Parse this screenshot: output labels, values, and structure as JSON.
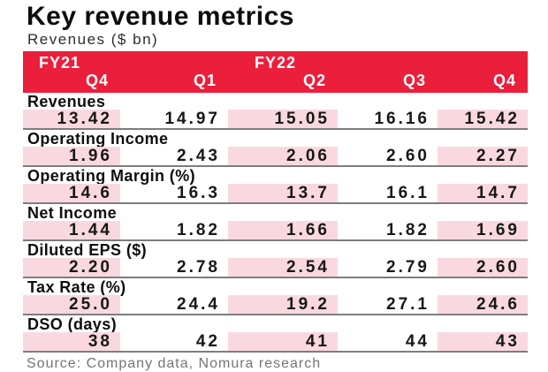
{
  "title": "Key revenue metrics",
  "subtitle": "Revenues ($ bn)",
  "source": "Source: Company data, Nomura research",
  "colors": {
    "band_red": "#EB1F3B",
    "cell_pink": "#F9D9DF",
    "divider_gray": "#7d7d7d",
    "source_gray": "#757575"
  },
  "chart_data": {
    "type": "table",
    "title": "Key revenue metrics",
    "subtitle": "Revenues ($ bn)",
    "fiscal_year_groups": [
      {
        "label": "FY21",
        "columns": [
          "Q4"
        ]
      },
      {
        "label": "FY22",
        "columns": [
          "Q1",
          "Q2",
          "Q3",
          "Q4"
        ]
      }
    ],
    "columns": [
      "Q4",
      "Q1",
      "Q2",
      "Q3",
      "Q4"
    ],
    "highlighted_columns": [
      0,
      2,
      4
    ],
    "rows": [
      {
        "label": "Revenues",
        "values": [
          "13.42",
          "14.97",
          "15.05",
          "16.16",
          "15.42"
        ]
      },
      {
        "label": "Operating Income",
        "values": [
          "1.96",
          "2.43",
          "2.06",
          "2.60",
          "2.27"
        ]
      },
      {
        "label": "Operating Margin (%)",
        "values": [
          "14.6",
          "16.3",
          "13.7",
          "16.1",
          "14.7"
        ]
      },
      {
        "label": "Net Income",
        "values": [
          "1.44",
          "1.82",
          "1.66",
          "1.82",
          "1.69"
        ]
      },
      {
        "label": "Diluted EPS ($)",
        "values": [
          "2.20",
          "2.78",
          "2.54",
          "2.79",
          "2.60"
        ]
      },
      {
        "label": "Tax Rate (%)",
        "values": [
          "25.0",
          "24.4",
          "19.2",
          "27.1",
          "24.6"
        ]
      },
      {
        "label": "DSO (days)",
        "values": [
          "38",
          "42",
          "41",
          "44",
          "43"
        ]
      }
    ],
    "source": "Source: Company data, Nomura research"
  }
}
